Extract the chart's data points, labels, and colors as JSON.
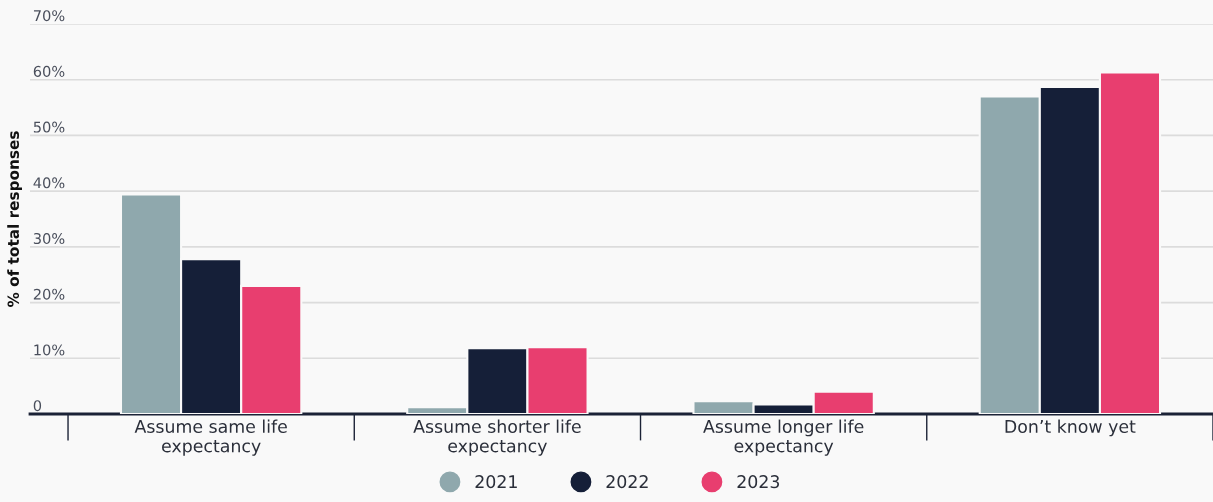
{
  "chart_data": {
    "type": "bar",
    "ylabel": "% of total responses",
    "categories": [
      "Assume same life\nexpectancy",
      "Assume shorter life\nexpectancy",
      "Assume longer life\nexpectancy",
      "Don’t know yet"
    ],
    "series": [
      {
        "name": "2021",
        "color": "#8fa8ad",
        "values": [
          39.4,
          1.2,
          2.3,
          57.0
        ]
      },
      {
        "name": "2022",
        "color": "#151f38",
        "values": [
          27.8,
          11.8,
          1.7,
          58.7
        ]
      },
      {
        "name": "2023",
        "color": "#e83e6f",
        "values": [
          23.0,
          12.0,
          4.0,
          61.3
        ]
      }
    ],
    "ylim": [
      0,
      70
    ],
    "yticks": [
      0,
      {
        "value": 10,
        "label": "10%"
      },
      {
        "value": 20,
        "label": "20%"
      },
      {
        "value": 30,
        "label": "30%"
      },
      {
        "value": 40,
        "label": "40%"
      },
      {
        "value": 50,
        "label": "50%"
      },
      {
        "value": 60,
        "label": "60%"
      },
      {
        "value": 70,
        "label": "70%"
      }
    ],
    "grid": "y",
    "legend": "bottom"
  }
}
